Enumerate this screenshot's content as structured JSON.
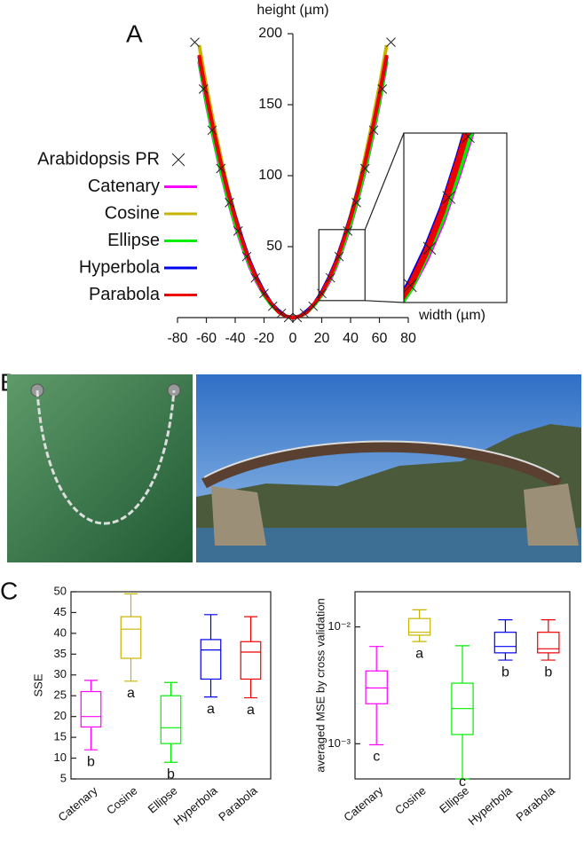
{
  "panel_labels": [
    "A",
    "B",
    "C"
  ],
  "chart_data": [
    {
      "type": "line",
      "xlabel": "width (µm)",
      "ylabel": "height (µm)",
      "xlim": [
        -80,
        80
      ],
      "ylim": [
        0,
        200
      ],
      "xticks": [
        -80,
        -60,
        -40,
        -20,
        0,
        20,
        40,
        60,
        80
      ],
      "yticks": [
        50,
        100,
        150,
        200
      ],
      "legend": "left",
      "zoom": {
        "xlim": [
          18,
          50
        ],
        "ylim": [
          12,
          62
        ]
      },
      "x": [
        -65,
        -60,
        -55,
        -50,
        -45,
        -40,
        -35,
        -30,
        -25,
        -20,
        -15,
        -10,
        -5,
        0,
        5,
        10,
        15,
        20,
        25,
        30,
        35,
        40,
        45,
        50,
        55,
        60,
        65
      ],
      "series": [
        {
          "name": "Arabidopsis PR",
          "color": "#222222",
          "marker": "x",
          "x": [
            -68,
            -62,
            -56,
            -50,
            -44,
            -38,
            -32,
            -26,
            -20,
            -14,
            -8,
            -3,
            3,
            8,
            14,
            20,
            26,
            32,
            38,
            44,
            50,
            56,
            62,
            68
          ],
          "values": [
            194,
            161,
            132,
            105,
            81,
            61,
            43,
            28,
            17,
            8,
            3,
            0,
            0,
            3,
            8,
            17,
            28,
            43,
            61,
            81,
            105,
            132,
            161,
            194
          ]
        },
        {
          "name": "Catenary",
          "color": "#ff00ff",
          "values": [
            180,
            151,
            126,
            103,
            83,
            65,
            50,
            36,
            25,
            16,
            9,
            4,
            1,
            0,
            1,
            4,
            9,
            16,
            25,
            36,
            50,
            65,
            83,
            103,
            126,
            151,
            180
          ]
        },
        {
          "name": "Cosine",
          "color": "#c8b400",
          "values": [
            192,
            163,
            137,
            113,
            91,
            72,
            55,
            40,
            28,
            18,
            10,
            4,
            1,
            0,
            1,
            4,
            10,
            18,
            28,
            40,
            55,
            72,
            91,
            113,
            137,
            163,
            192
          ]
        },
        {
          "name": "Ellipse",
          "color": "#00ee00",
          "values": [
            181,
            152,
            127,
            104,
            84,
            66,
            51,
            37,
            26,
            16,
            9,
            4,
            1,
            0,
            1,
            4,
            9,
            16,
            26,
            37,
            51,
            66,
            84,
            104,
            127,
            152,
            181
          ]
        },
        {
          "name": "Hyperbola",
          "color": "#0000ee",
          "values": [
            184,
            157,
            132,
            109,
            89,
            71,
            55,
            40,
            28,
            18,
            10,
            5,
            1,
            0,
            1,
            5,
            10,
            18,
            28,
            40,
            55,
            71,
            89,
            109,
            132,
            157,
            184
          ]
        },
        {
          "name": "Parabola",
          "color": "#ee0000",
          "values": [
            185,
            157,
            132,
            109,
            88,
            70,
            54,
            39,
            27,
            17,
            10,
            4,
            1,
            0,
            1,
            4,
            10,
            17,
            27,
            39,
            54,
            70,
            88,
            109,
            132,
            157,
            185
          ]
        }
      ]
    },
    {
      "type": "box",
      "ylabel": "SSE",
      "ylim": [
        5,
        50
      ],
      "yticks": [
        5,
        10,
        15,
        20,
        25,
        30,
        35,
        40,
        45,
        50
      ],
      "categories": [
        "Catenary",
        "Cosine",
        "Ellipse",
        "Hyperbola",
        "Parabola"
      ],
      "colors": [
        "#ff00ff",
        "#c8b400",
        "#00ee00",
        "#0000ee",
        "#ee0000"
      ],
      "min": [
        12,
        28.5,
        9,
        24.7,
        24.5
      ],
      "q1": [
        17.5,
        34,
        13.5,
        29,
        29
      ],
      "median": [
        20,
        41,
        17.3,
        36,
        35.5
      ],
      "q3": [
        26,
        44,
        25,
        38.5,
        38
      ],
      "max": [
        28.7,
        49.5,
        28.2,
        44.5,
        44
      ],
      "letters": [
        "b",
        "a",
        "b",
        "a",
        "a"
      ]
    },
    {
      "type": "box",
      "ylabel": "averaged MSE by cross validation",
      "log_scale": true,
      "ylim": [
        0.0005,
        0.02
      ],
      "yticks": [
        {
          "value": 0.001,
          "label": "10⁻³"
        },
        {
          "value": 0.01,
          "label": "10⁻²"
        }
      ],
      "categories": [
        "Catenary",
        "Cosine",
        "Ellipse",
        "Hyperbola",
        "Parabola"
      ],
      "colors": [
        "#ff00ff",
        "#c8b400",
        "#00ee00",
        "#0000ee",
        "#ee0000"
      ],
      "min": [
        0.00098,
        0.0075,
        0.0005,
        0.0052,
        0.0052
      ],
      "q1": [
        0.0022,
        0.0085,
        0.0012,
        0.006,
        0.006
      ],
      "median": [
        0.003,
        0.009,
        0.002,
        0.0068,
        0.0065
      ],
      "q3": [
        0.0042,
        0.0118,
        0.0033,
        0.009,
        0.009
      ],
      "max": [
        0.0068,
        0.014,
        0.0069,
        0.0115,
        0.0115
      ],
      "letters": [
        "c",
        "a",
        "c",
        "b",
        "b"
      ]
    }
  ]
}
